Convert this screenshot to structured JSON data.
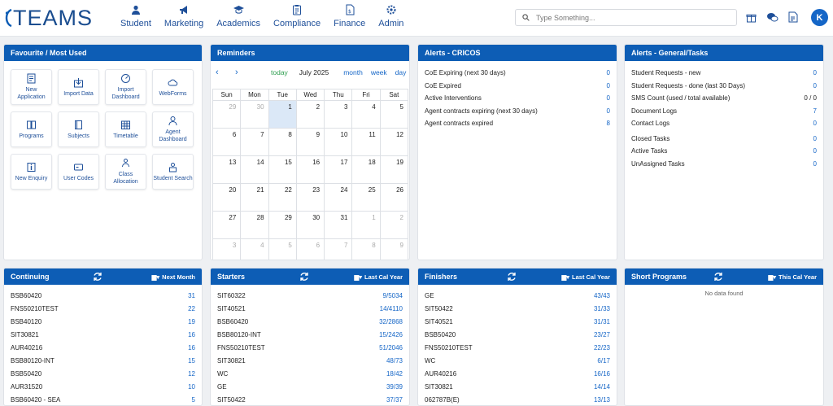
{
  "brand": {
    "name": "TEAMS"
  },
  "nav": [
    {
      "label": "Student",
      "icon": "student-icon"
    },
    {
      "label": "Marketing",
      "icon": "megaphone-icon"
    },
    {
      "label": "Academics",
      "icon": "graduation-cap-icon"
    },
    {
      "label": "Compliance",
      "icon": "clipboard-icon"
    },
    {
      "label": "Finance",
      "icon": "invoice-icon"
    },
    {
      "label": "Admin",
      "icon": "admin-gear-icon"
    }
  ],
  "search": {
    "placeholder": "Type Something..."
  },
  "user": {
    "initial": "K"
  },
  "favourites": {
    "title": "Favourite / Most Used",
    "items": [
      {
        "label": "New Application",
        "icon": "application-form-icon"
      },
      {
        "label": "Import Data",
        "icon": "import-icon"
      },
      {
        "label": "Import Dashboard",
        "icon": "gauge-icon"
      },
      {
        "label": "WebForms",
        "icon": "cloud-icon"
      },
      {
        "label": "Programs",
        "icon": "book-icon"
      },
      {
        "label": "Subjects",
        "icon": "notebook-icon"
      },
      {
        "label": "Timetable",
        "icon": "calendar-grid-icon"
      },
      {
        "label": "Agent Dashboard",
        "icon": "agent-icon"
      },
      {
        "label": "New Enquiry",
        "icon": "info-icon"
      },
      {
        "label": "User Codes",
        "icon": "keycard-icon"
      },
      {
        "label": "Class Allocation",
        "icon": "class-icon"
      },
      {
        "label": "Student Search",
        "icon": "student-search-icon"
      }
    ]
  },
  "reminders": {
    "title": "Reminders",
    "today_label": "today",
    "month_title": "July 2025",
    "views": [
      "month",
      "week",
      "day"
    ],
    "weekdays": [
      "Sun",
      "Mon",
      "Tue",
      "Wed",
      "Thu",
      "Fri",
      "Sat"
    ],
    "weeks": [
      [
        "29",
        "30",
        "1",
        "2",
        "3",
        "4",
        "5"
      ],
      [
        "6",
        "7",
        "8",
        "9",
        "10",
        "11",
        "12"
      ],
      [
        "13",
        "14",
        "15",
        "16",
        "17",
        "18",
        "19"
      ],
      [
        "20",
        "21",
        "22",
        "23",
        "24",
        "25",
        "26"
      ],
      [
        "27",
        "28",
        "29",
        "30",
        "31",
        "1",
        "2"
      ],
      [
        "3",
        "4",
        "5",
        "6",
        "7",
        "8",
        "9"
      ]
    ]
  },
  "alerts_cricos": {
    "title": "Alerts - CRICOS",
    "rows": [
      {
        "label": "CoE Expiring (next 30 days)",
        "value": "0"
      },
      {
        "label": "CoE Expired",
        "value": "0"
      },
      {
        "label": "Active Interventions",
        "value": "0"
      },
      {
        "label": "Agent contracts expiring (next 30 days)",
        "value": "0"
      },
      {
        "label": "Agent contracts expired",
        "value": "8"
      }
    ]
  },
  "alerts_general": {
    "title": "Alerts - General/Tasks",
    "rows": [
      {
        "label": "Student Requests - new",
        "value": "0"
      },
      {
        "label": "Student Requests - done (last 30 Days)",
        "value": "0"
      },
      {
        "label": "SMS Count (used / total available)",
        "value": "0 / 0"
      },
      {
        "label": "Document Logs",
        "value": "7"
      },
      {
        "label": "Contact Logs",
        "value": "0"
      },
      {
        "label": "Closed Tasks",
        "value": "0"
      },
      {
        "label": "Active Tasks",
        "value": "0"
      },
      {
        "label": "UnAssigned Tasks",
        "value": "0"
      }
    ]
  },
  "continuing": {
    "title": "Continuing",
    "filter": "Next Month",
    "rows": [
      {
        "code": "BSB60420",
        "value": "31"
      },
      {
        "code": "FNS50210TEST",
        "value": "22"
      },
      {
        "code": "BSB40120",
        "value": "19"
      },
      {
        "code": "SIT30821",
        "value": "16"
      },
      {
        "code": "AUR40216",
        "value": "16"
      },
      {
        "code": "BSB80120-INT",
        "value": "15"
      },
      {
        "code": "BSB50420",
        "value": "12"
      },
      {
        "code": "AUR31520",
        "value": "10"
      },
      {
        "code": "BSB60420 - SEA",
        "value": "5"
      }
    ]
  },
  "starters": {
    "title": "Starters",
    "filter": "Last Cal Year",
    "rows": [
      {
        "code": "SIT60322",
        "value": "9/5034"
      },
      {
        "code": "SIT40521",
        "value": "14/4110"
      },
      {
        "code": "BSB60420",
        "value": "32/2868"
      },
      {
        "code": "BSB80120-INT",
        "value": "15/2426"
      },
      {
        "code": "FNS50210TEST",
        "value": "51/2046"
      },
      {
        "code": "SIT30821",
        "value": "48/73"
      },
      {
        "code": "WC",
        "value": "18/42"
      },
      {
        "code": "GE",
        "value": "39/39"
      },
      {
        "code": "SIT50422",
        "value": "37/37"
      }
    ]
  },
  "finishers": {
    "title": "Finishers",
    "filter": "Last Cal Year",
    "rows": [
      {
        "code": "GE",
        "value": "43/43"
      },
      {
        "code": "SIT50422",
        "value": "31/33"
      },
      {
        "code": "SIT40521",
        "value": "31/31"
      },
      {
        "code": "BSB50420",
        "value": "23/27"
      },
      {
        "code": "FNS50210TEST",
        "value": "22/23"
      },
      {
        "code": "WC",
        "value": "6/17"
      },
      {
        "code": "AUR40216",
        "value": "16/16"
      },
      {
        "code": "SIT30821",
        "value": "14/14"
      },
      {
        "code": "062787B(E)",
        "value": "13/13"
      }
    ]
  },
  "short_programs": {
    "title": "Short Programs",
    "filter": "This Cal Year",
    "empty": "No data found"
  },
  "colors": {
    "primary": "#0d5db5",
    "link": "#1566c7",
    "today_bg": "#dbe8f7",
    "today_text": "#2e9e4f"
  }
}
